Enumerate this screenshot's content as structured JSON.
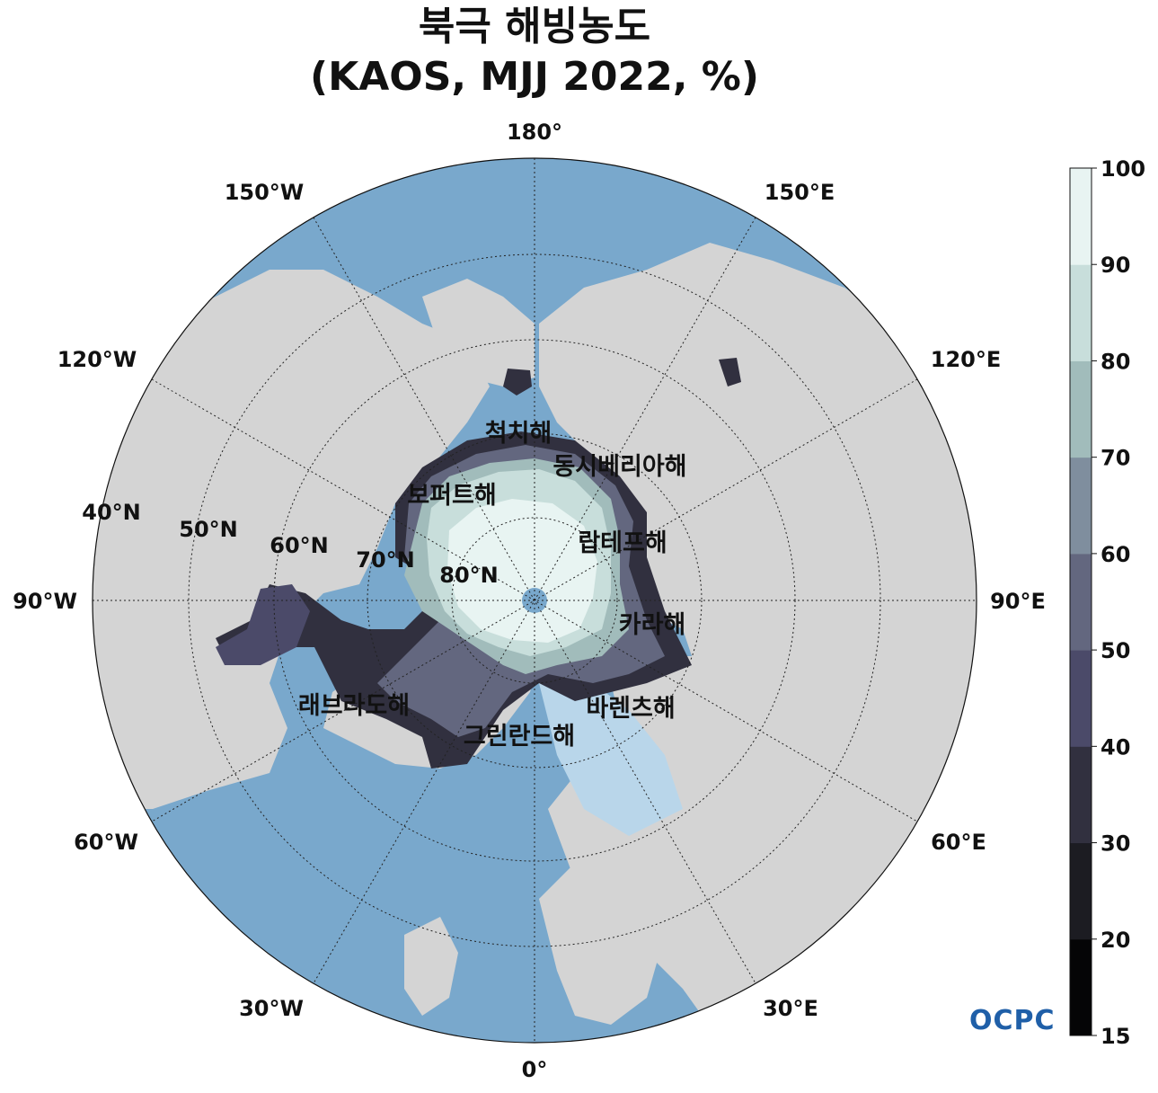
{
  "title": {
    "line1": "북극 해빙농도",
    "line2": "(KAOS, MJJ 2022, %)"
  },
  "longitude_labels": [
    {
      "key": "lon0",
      "text": "0°"
    },
    {
      "key": "lon30e",
      "text": "30°E"
    },
    {
      "key": "lon60e",
      "text": "60°E"
    },
    {
      "key": "lon90e",
      "text": "90°E"
    },
    {
      "key": "lon120e",
      "text": "120°E"
    },
    {
      "key": "lon150e",
      "text": "150°E"
    },
    {
      "key": "lon180",
      "text": "180°"
    },
    {
      "key": "lon150w",
      "text": "150°W"
    },
    {
      "key": "lon120w",
      "text": "120°W"
    },
    {
      "key": "lon90w",
      "text": "90°W"
    },
    {
      "key": "lon60w",
      "text": "60°W"
    },
    {
      "key": "lon30w",
      "text": "30°W"
    }
  ],
  "latitude_labels": [
    {
      "key": "lat40",
      "text": "40°N"
    },
    {
      "key": "lat50",
      "text": "50°N"
    },
    {
      "key": "lat60",
      "text": "60°N"
    },
    {
      "key": "lat70",
      "text": "70°N"
    },
    {
      "key": "lat80",
      "text": "80°N"
    }
  ],
  "sea_labels": [
    {
      "key": "chukchi",
      "text": "척치해"
    },
    {
      "key": "east_siberian",
      "text": "동시베리아해"
    },
    {
      "key": "beaufort",
      "text": "보퍼트해"
    },
    {
      "key": "laptev",
      "text": "랍테프해"
    },
    {
      "key": "kara",
      "text": "카라해"
    },
    {
      "key": "barents",
      "text": "바렌츠해"
    },
    {
      "key": "labrador",
      "text": "래브라도해"
    },
    {
      "key": "greenland",
      "text": "그린란드해"
    }
  ],
  "colorbar": {
    "ticks": [
      "15",
      "20",
      "30",
      "40",
      "50",
      "60",
      "70",
      "80",
      "90",
      "100"
    ],
    "colors": [
      "#050506",
      "#1c1c22",
      "#31303f",
      "#4b4a69",
      "#63677f",
      "#7f8e9e",
      "#a1bcbb",
      "#c8dedb",
      "#e8f4f2"
    ]
  },
  "colors": {
    "land": "#d4d4d4",
    "ocean": "#79a8cc",
    "ocean_shelf": "#b9d6ea"
  },
  "logo": "OCPC"
}
